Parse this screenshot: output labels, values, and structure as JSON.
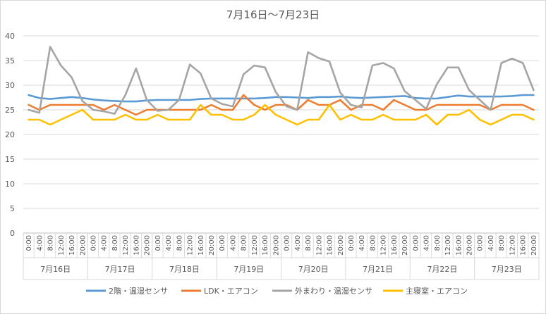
{
  "chart_data": {
    "type": "line",
    "title": "7月16日～7月23日",
    "ylim": [
      0,
      40
    ],
    "yticks": [
      0,
      5,
      10,
      15,
      20,
      25,
      30,
      35,
      40
    ],
    "grid": true,
    "legend_position": "bottom",
    "x_time_labels": [
      "0:00",
      "4:00",
      "8:00",
      "12:00",
      "16:00",
      "20:00"
    ],
    "x_day_labels": [
      "7月16日",
      "7月17日",
      "7月18日",
      "7月19日",
      "7月20日",
      "7月21日",
      "7月22日",
      "7月23日"
    ],
    "series": [
      {
        "name": "2階・温湿センサ",
        "color": "#5B9BD5",
        "values": [
          28,
          27.4,
          27.2,
          27.4,
          27.6,
          27.4,
          27.1,
          26.9,
          26.8,
          26.7,
          26.7,
          26.9,
          27,
          27,
          27,
          27,
          27.2,
          27.3,
          27.3,
          27.3,
          27.3,
          27.3,
          27.4,
          27.6,
          27.6,
          27.5,
          27.4,
          27.6,
          27.6,
          27.7,
          27.5,
          27.4,
          27.5,
          27.6,
          27.7,
          27.8,
          27.4,
          27.3,
          27.3,
          27.6,
          27.9,
          27.7,
          27.7,
          27.7,
          27.7,
          27.8,
          28,
          28
        ]
      },
      {
        "name": "LDK・エアコン",
        "color": "#ED7D31",
        "values": [
          26,
          25,
          26,
          26,
          26,
          26,
          26,
          25,
          26,
          25,
          24,
          25,
          25,
          25,
          25,
          25,
          25,
          26,
          25,
          25,
          28,
          26,
          25,
          26,
          26,
          25,
          27,
          26,
          26,
          27,
          25,
          26,
          26,
          25,
          27,
          26,
          25,
          25,
          26,
          26,
          26,
          26,
          26,
          25,
          26,
          26,
          26,
          25
        ]
      },
      {
        "name": "外まわり・温湿センサ",
        "color": "#A5A5A5",
        "values": [
          25,
          24.4,
          37.8,
          34,
          31.6,
          26.8,
          25,
          24.7,
          24.2,
          28,
          33.4,
          27,
          24.8,
          25,
          27,
          34.2,
          32.4,
          27.3,
          26.2,
          25.7,
          32.2,
          34,
          33.6,
          28.6,
          25.7,
          25,
          36.7,
          35.5,
          34.8,
          28.5,
          26,
          25.5,
          34,
          34.5,
          33.4,
          28.8,
          27,
          25.2,
          30.2,
          33.6,
          33.6,
          29,
          27,
          25,
          34.5,
          35.4,
          34.5,
          29
        ]
      },
      {
        "name": "主寝室・エアコン",
        "color": "#FFC000",
        "values": [
          23,
          23,
          22,
          23,
          24,
          25,
          23,
          23,
          23,
          24,
          23,
          23,
          24,
          23,
          23,
          23,
          26,
          24,
          24,
          23,
          23,
          24,
          26,
          24,
          23,
          22,
          23,
          23,
          26,
          23,
          24,
          23,
          23,
          24,
          23,
          23,
          23,
          24,
          22,
          24,
          24,
          25,
          23,
          22,
          23,
          24,
          24,
          23
        ]
      }
    ]
  }
}
